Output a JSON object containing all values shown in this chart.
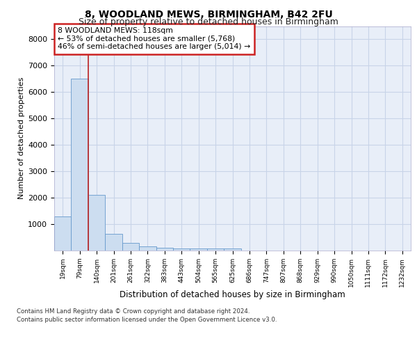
{
  "title1": "8, WOODLAND MEWS, BIRMINGHAM, B42 2FU",
  "title2": "Size of property relative to detached houses in Birmingham",
  "xlabel": "Distribution of detached houses by size in Birmingham",
  "ylabel": "Number of detached properties",
  "bar_color": "#ccddf0",
  "bar_edge_color": "#6699cc",
  "bin_labels": [
    "19sqm",
    "79sqm",
    "140sqm",
    "201sqm",
    "261sqm",
    "322sqm",
    "383sqm",
    "443sqm",
    "504sqm",
    "565sqm",
    "625sqm",
    "686sqm",
    "747sqm",
    "807sqm",
    "868sqm",
    "929sqm",
    "990sqm",
    "1050sqm",
    "1111sqm",
    "1172sqm",
    "1232sqm"
  ],
  "bar_values": [
    1300,
    6500,
    2100,
    625,
    280,
    150,
    100,
    75,
    75,
    75,
    75,
    0,
    0,
    0,
    0,
    0,
    0,
    0,
    0,
    0,
    0
  ],
  "ylim": [
    0,
    8500
  ],
  "yticks": [
    1000,
    2000,
    3000,
    4000,
    5000,
    6000,
    7000,
    8000
  ],
  "annotation_line1": "8 WOODLAND MEWS: 118sqm",
  "annotation_line2": "← 53% of detached houses are smaller (5,768)",
  "annotation_line3": "46% of semi-detached houses are larger (5,014) →",
  "footer1": "Contains HM Land Registry data © Crown copyright and database right 2024.",
  "footer2": "Contains public sector information licensed under the Open Government Licence v3.0.",
  "background_color": "#e8eef8",
  "grid_color": "#c8d4e8",
  "red_line_color": "#bb2222",
  "annotation_edge_color": "#cc2222",
  "annotation_bg": "#ffffff",
  "red_line_x": 1.5
}
